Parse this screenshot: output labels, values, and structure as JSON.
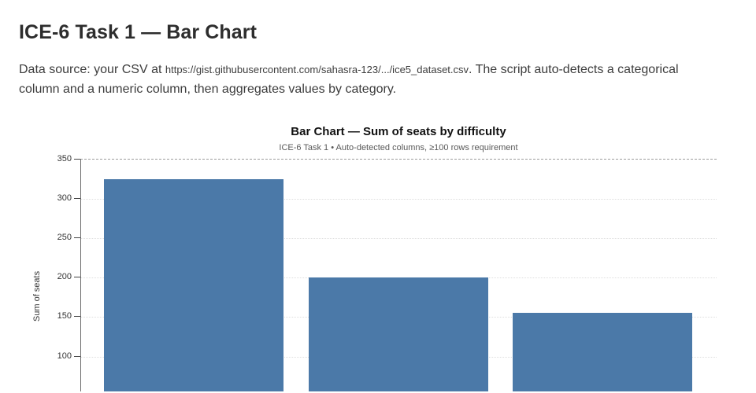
{
  "page": {
    "title": "ICE-6 Task 1 — Bar Chart",
    "intro": {
      "before_url": "Data source: your CSV at ",
      "url": "https://gist.githubusercontent.com/sahasra-123/.../ice5_dataset.csv",
      "after_url": ". The script auto-detects a categorical column and a numeric column, then aggregates values by category."
    }
  },
  "chart": {
    "title": "Bar Chart — Sum of seats by difficulty",
    "subtitle": "ICE-6 Task 1 • Auto-detected columns, ≥100 rows requirement",
    "ylabel": "Sum of seats"
  },
  "colors": {
    "bar": "#4b79a8",
    "title_text": "#111111",
    "subtitle_text": "#595959",
    "tick_text": "#333333"
  },
  "chart_data": {
    "type": "bar",
    "title": "Bar Chart — Sum of seats by difficulty",
    "subtitle": "ICE-6 Task 1 • Auto-detected columns, ≥100 rows requirement",
    "categories": [
      "",
      "",
      ""
    ],
    "values": [
      325,
      200,
      155
    ],
    "xlabel": "",
    "ylabel": "Sum of seats",
    "ylim": [
      0,
      350
    ],
    "yticks": [
      350,
      300,
      250,
      200,
      150,
      100
    ],
    "grid": "horizontal-dotted, top edge dashed",
    "legend": "none",
    "bar_color": "#4b79a8",
    "note": "x-axis category labels and axis bottom are cropped below the visible screenshot area"
  }
}
